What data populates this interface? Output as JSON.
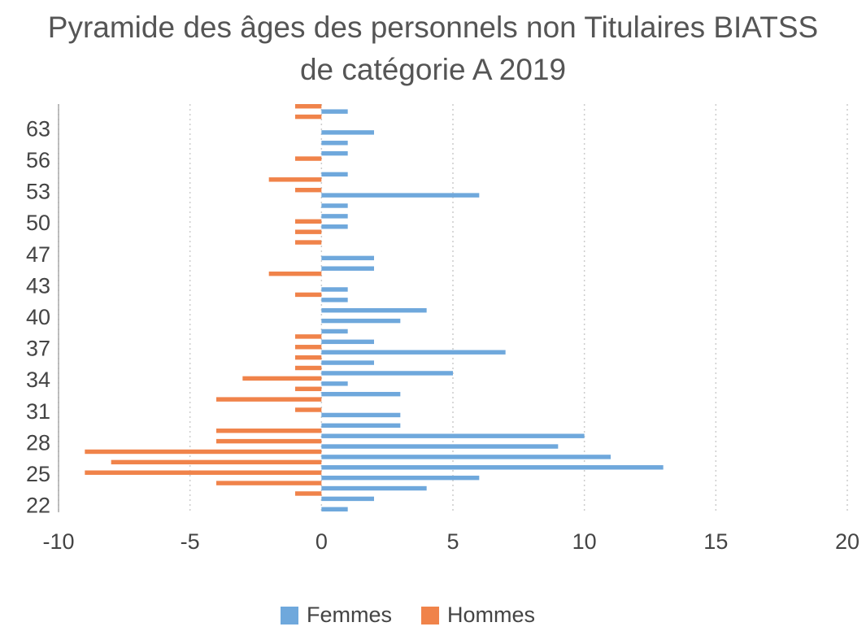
{
  "chart_data": {
    "type": "bar",
    "orientation": "horizontal",
    "title": "Pyramide des âges des personnels non Titulaires BIATSS de catégorie A 2019",
    "categories": [
      "22",
      null,
      null,
      "25",
      null,
      null,
      "28",
      null,
      null,
      "31",
      null,
      null,
      "34",
      null,
      null,
      "37",
      null,
      null,
      "40",
      null,
      null,
      "43",
      null,
      null,
      "47",
      null,
      null,
      "50",
      null,
      null,
      "53",
      null,
      null,
      "56",
      null,
      null,
      "63",
      null,
      null
    ],
    "series": [
      {
        "name": "Femmes",
        "color": "#6fa8dc",
        "values": [
          1,
          2,
          4,
          6,
          13,
          11,
          9,
          10,
          3,
          3,
          0,
          3,
          1,
          5,
          2,
          7,
          2,
          1,
          3,
          4,
          1,
          1,
          0,
          2,
          2,
          0,
          0,
          1,
          1,
          1,
          6,
          0,
          1,
          0,
          1,
          1,
          2,
          0,
          1
        ]
      },
      {
        "name": "Hommes",
        "color": "#f0834a",
        "values": [
          0,
          -1,
          -4,
          -9,
          -8,
          -9,
          -4,
          -4,
          0,
          -1,
          -4,
          -1,
          -3,
          -1,
          -1,
          -1,
          -1,
          0,
          0,
          0,
          -1,
          0,
          -2,
          0,
          0,
          -1,
          -1,
          -1,
          0,
          0,
          -1,
          -2,
          0,
          -1,
          0,
          0,
          0,
          -1,
          -1
        ]
      }
    ],
    "xlim": [
      -10,
      20
    ],
    "xticks": [
      -10,
      -5,
      0,
      5,
      10,
      15,
      20
    ],
    "grid": true,
    "legend": "bottom"
  }
}
